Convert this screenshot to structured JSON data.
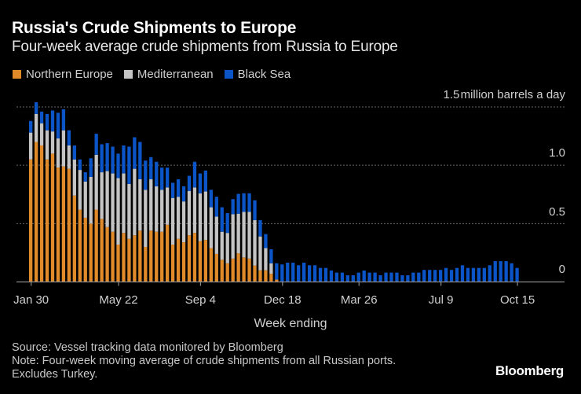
{
  "chart_data": {
    "type": "bar",
    "stacked": true,
    "title": "Russia's Crude Shipments to Europe",
    "subtitle": "Four-week average crude shipments from Russia to Europe",
    "xlabel": "Week ending",
    "ylabel": "million barrels a day",
    "unit_label": "million barrels a day",
    "ylim": [
      0,
      1.5
    ],
    "yticks": [
      {
        "value": 0,
        "label": "0"
      },
      {
        "value": 0.5,
        "label": "0.5"
      },
      {
        "value": 1.0,
        "label": "1.0"
      },
      {
        "value": 1.5,
        "label": "1.5"
      }
    ],
    "grid": true,
    "legend_position": "top-left",
    "xticks": [
      {
        "index": 0,
        "label": "Jan 30"
      },
      {
        "index": 16,
        "label": "May 22"
      },
      {
        "index": 31,
        "label": "Sep 4"
      },
      {
        "index": 46,
        "label": "Dec 18"
      },
      {
        "index": 60,
        "label": "Mar 26"
      },
      {
        "index": 75,
        "label": "Jul 9"
      },
      {
        "index": 89,
        "label": "Oct 15"
      }
    ],
    "series": [
      {
        "name": "Northern Europe",
        "color": "#e08a2a",
        "values": [
          1.05,
          1.2,
          1.17,
          1.05,
          1.1,
          0.98,
          0.99,
          0.97,
          0.74,
          0.62,
          0.55,
          0.5,
          0.62,
          0.54,
          0.47,
          0.43,
          0.32,
          0.42,
          0.37,
          0.4,
          0.44,
          0.3,
          0.44,
          0.43,
          0.43,
          0.49,
          0.32,
          0.37,
          0.34,
          0.4,
          0.42,
          0.35,
          0.36,
          0.29,
          0.24,
          0.19,
          0.16,
          0.2,
          0.245,
          0.21,
          0.2,
          0.14,
          0.1,
          0.1,
          0.07,
          0.02,
          0,
          0,
          0,
          0,
          0,
          0,
          0,
          0,
          0,
          0,
          0,
          0,
          0,
          0,
          0,
          0,
          0,
          0,
          0,
          0,
          0,
          0,
          0,
          0,
          0,
          0,
          0,
          0,
          0,
          0,
          0,
          0,
          0,
          0,
          0,
          0,
          0,
          0,
          0,
          0,
          0,
          0,
          0,
          0
        ]
      },
      {
        "name": "Mediterranean",
        "color": "#c4c4c4",
        "values": [
          0.23,
          0.24,
          0.19,
          0.25,
          0.19,
          0.25,
          0.31,
          0.2,
          0.31,
          0.34,
          0.31,
          0.4,
          0.47,
          0.4,
          0.48,
          0.5,
          0.57,
          0.51,
          0.47,
          0.57,
          0.44,
          0.49,
          0.44,
          0.39,
          0.36,
          0.32,
          0.4,
          0.36,
          0.35,
          0.38,
          0.39,
          0.41,
          0.415,
          0.35,
          0.32,
          0.24,
          0.26,
          0.38,
          0.34,
          0.39,
          0.4,
          0.39,
          0.29,
          0.19,
          0.09,
          0,
          0,
          0,
          0,
          0,
          0,
          0,
          0,
          0,
          0,
          0,
          0,
          0,
          0,
          0,
          0,
          0,
          0,
          0,
          0,
          0,
          0,
          0,
          0,
          0,
          0,
          0,
          0,
          0,
          0,
          0,
          0,
          0,
          0,
          0,
          0,
          0,
          0,
          0,
          0,
          0,
          0,
          0,
          0,
          0
        ]
      },
      {
        "name": "Black Sea",
        "color": "#0b55c8",
        "values": [
          0.1,
          0.1,
          0.1,
          0.14,
          0.18,
          0.22,
          0.18,
          0.13,
          0.12,
          0.09,
          0.08,
          0.16,
          0.18,
          0.24,
          0.24,
          0.23,
          0.21,
          0.24,
          0.32,
          0.27,
          0.32,
          0.25,
          0.19,
          0.21,
          0.19,
          0.17,
          0.13,
          0.15,
          0.13,
          0.13,
          0.22,
          0.17,
          0.18,
          0.15,
          0.17,
          0.21,
          0.17,
          0.13,
          0.17,
          0.16,
          0.16,
          0.17,
          0.14,
          0.12,
          0.12,
          0.14,
          0.15,
          0.165,
          0.165,
          0.143,
          0.165,
          0.143,
          0.143,
          0.12,
          0.12,
          0.098,
          0.08,
          0.08,
          0.057,
          0.057,
          0.08,
          0.098,
          0.08,
          0.08,
          0.057,
          0.08,
          0.08,
          0.08,
          0.057,
          0.057,
          0.08,
          0.08,
          0.103,
          0.103,
          0.103,
          0.103,
          0.12,
          0.103,
          0.12,
          0.143,
          0.12,
          0.12,
          0.12,
          0.12,
          0.143,
          0.178,
          0.178,
          0.178,
          0.16,
          0.12
        ]
      }
    ]
  },
  "legend": [
    {
      "label": "Northern Europe",
      "color": "#e08a2a"
    },
    {
      "label": "Mediterranean",
      "color": "#c4c4c4"
    },
    {
      "label": "Black Sea",
      "color": "#0b55c8"
    }
  ],
  "footer": {
    "source": "Source: Vessel tracking data monitored by Bloomberg",
    "note": "Note: Four-week moving average of crude shipments from all Russian ports.",
    "note2": "Excludes Turkey."
  },
  "brand": "Bloomberg"
}
